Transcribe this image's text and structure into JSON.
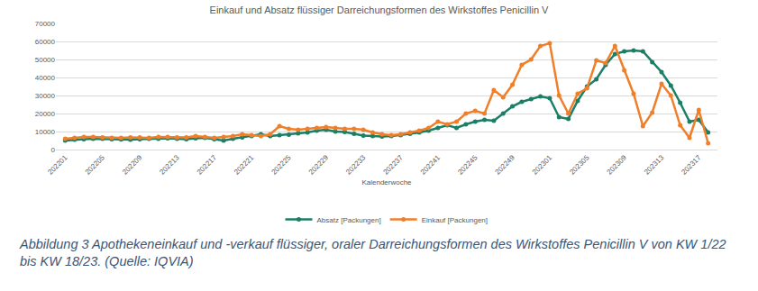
{
  "chart_data": {
    "type": "line",
    "title": "Einkauf und Absatz flüssiger Darreichungsformen des Wirkstoffes Penicillin V",
    "x_label": "Kalenderwoche",
    "caption": "Abbildung 3 Apothekeneinkauf und -verkauf flüssiger, oraler Darreichungsformen des Wirkstoffes Penicillin V von KW 1/22 bis KW 18/23. (Quelle: IQVIA)",
    "categories": [
      "202201",
      null,
      null,
      null,
      "202205",
      null,
      null,
      null,
      "202209",
      null,
      null,
      null,
      "202213",
      null,
      null,
      null,
      "202217",
      null,
      null,
      null,
      "202221",
      null,
      null,
      null,
      "202225",
      null,
      null,
      null,
      "202229",
      null,
      null,
      null,
      "202233",
      null,
      null,
      null,
      "202237",
      null,
      null,
      null,
      "202241",
      null,
      null,
      null,
      "202245",
      null,
      null,
      null,
      "202249",
      null,
      null,
      null,
      "202301",
      null,
      null,
      null,
      "202305",
      null,
      null,
      null,
      "202309",
      null,
      null,
      null,
      "202313",
      null,
      null,
      null,
      "202317",
      null
    ],
    "series": [
      {
        "name": "Absatz [Packungen]",
        "color": "#1b7f66",
        "marker": "circle",
        "values": [
          5000,
          5500,
          5800,
          6000,
          6000,
          5800,
          5600,
          5500,
          5800,
          6000,
          6000,
          6200,
          6000,
          5800,
          6200,
          6500,
          5800,
          5000,
          6000,
          6800,
          7500,
          8500,
          7500,
          8000,
          8200,
          9000,
          9500,
          10500,
          11000,
          10000,
          9800,
          8800,
          7800,
          7500,
          7200,
          7500,
          8000,
          8800,
          9500,
          10500,
          12000,
          13500,
          12000,
          14000,
          15500,
          16500,
          16000,
          20000,
          24000,
          26500,
          28000,
          29500,
          28500,
          18000,
          17000,
          27000,
          35000,
          39000,
          47000,
          53000,
          54500,
          55000,
          54500,
          48500,
          43000,
          35500,
          26000,
          15500,
          16500,
          9500
        ]
      },
      {
        "name": "Einkauf [Packungen]",
        "color": "#f07f2a",
        "marker": "circle",
        "values": [
          6000,
          6500,
          7000,
          7000,
          6800,
          6500,
          6500,
          6800,
          6800,
          6500,
          7000,
          7000,
          6800,
          6800,
          7500,
          7000,
          6500,
          7000,
          7500,
          8500,
          8000,
          7500,
          8500,
          13000,
          11500,
          11000,
          11500,
          12000,
          12500,
          12000,
          11500,
          11500,
          11000,
          9500,
          8500,
          8000,
          8500,
          9500,
          10500,
          12000,
          15500,
          14000,
          15500,
          20000,
          21500,
          20000,
          33000,
          29000,
          36000,
          47000,
          50000,
          57500,
          59000,
          30000,
          20000,
          31000,
          34000,
          49500,
          48000,
          57500,
          44000,
          31000,
          13000,
          20500,
          36500,
          30000,
          13500,
          6500,
          22000,
          3500
        ]
      }
    ],
    "ylim": [
      0,
      70000
    ],
    "yticks": [
      0,
      10000,
      20000,
      30000,
      40000,
      50000,
      60000,
      70000
    ],
    "grid": true,
    "legend": "bottom"
  }
}
